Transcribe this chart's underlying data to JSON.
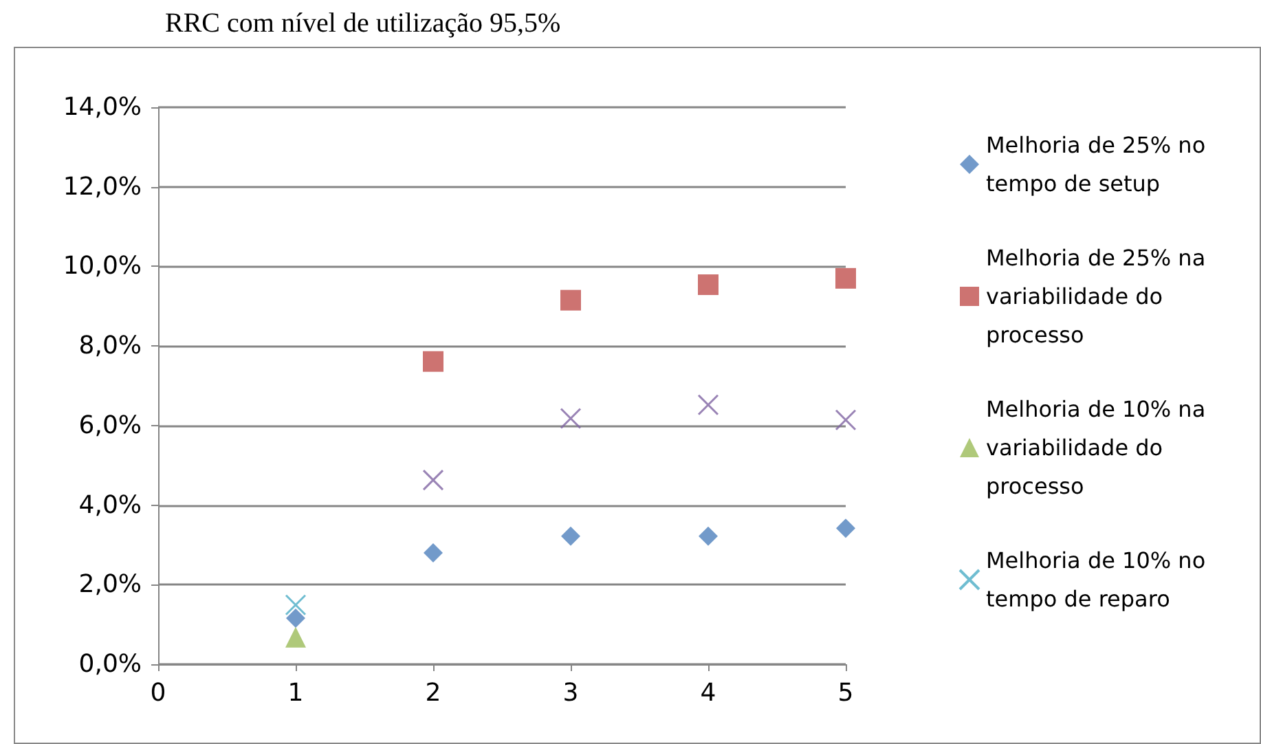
{
  "chart_data": {
    "type": "scatter",
    "title": "RRC com nível de utilização 95,5%",
    "x": [
      1,
      2,
      3,
      4,
      5
    ],
    "series": [
      {
        "name": "Melhoria de 25% no tempo de setup",
        "color": "#4f81bd",
        "marker": "diamond",
        "values": [
          1.16,
          2.8,
          3.22,
          3.22,
          3.42
        ]
      },
      {
        "name": "Melhoria de 25% na variabilidade do processo",
        "color": "#c0504d",
        "marker": "square",
        "values": [
          null,
          7.61,
          9.15,
          9.54,
          9.7
        ]
      },
      {
        "name": "Melhoria de 10% na variabilidade do processo",
        "color": "#9bbb59",
        "marker": "triangle",
        "values": [
          0.68,
          null,
          null,
          null,
          null
        ]
      },
      {
        "name": "Melhoria de 10% no tempo de reparo",
        "color": "#4bacc6",
        "marker": "cross",
        "values": [
          1.49,
          null,
          null,
          null,
          null
        ]
      },
      {
        "color": "#8064a2",
        "marker": "cross",
        "values": [
          null,
          4.63,
          6.18,
          6.52,
          6.14
        ]
      }
    ],
    "xlim": [
      0,
      5
    ],
    "xticks": [
      0,
      1,
      2,
      3,
      4,
      5
    ],
    "ylim": [
      0,
      14
    ],
    "yticks": [
      {
        "value": 0,
        "label": "0,0%"
      },
      {
        "value": 2,
        "label": "2,0%"
      },
      {
        "value": 4,
        "label": "4,0%"
      },
      {
        "value": 6,
        "label": "6,0%"
      },
      {
        "value": 8,
        "label": "8,0%"
      },
      {
        "value": 10,
        "label": "10,0%"
      },
      {
        "value": 12,
        "label": "12,0%"
      },
      {
        "value": 14,
        "label": "14,0%"
      }
    ],
    "grid": "y",
    "legend": "right"
  }
}
